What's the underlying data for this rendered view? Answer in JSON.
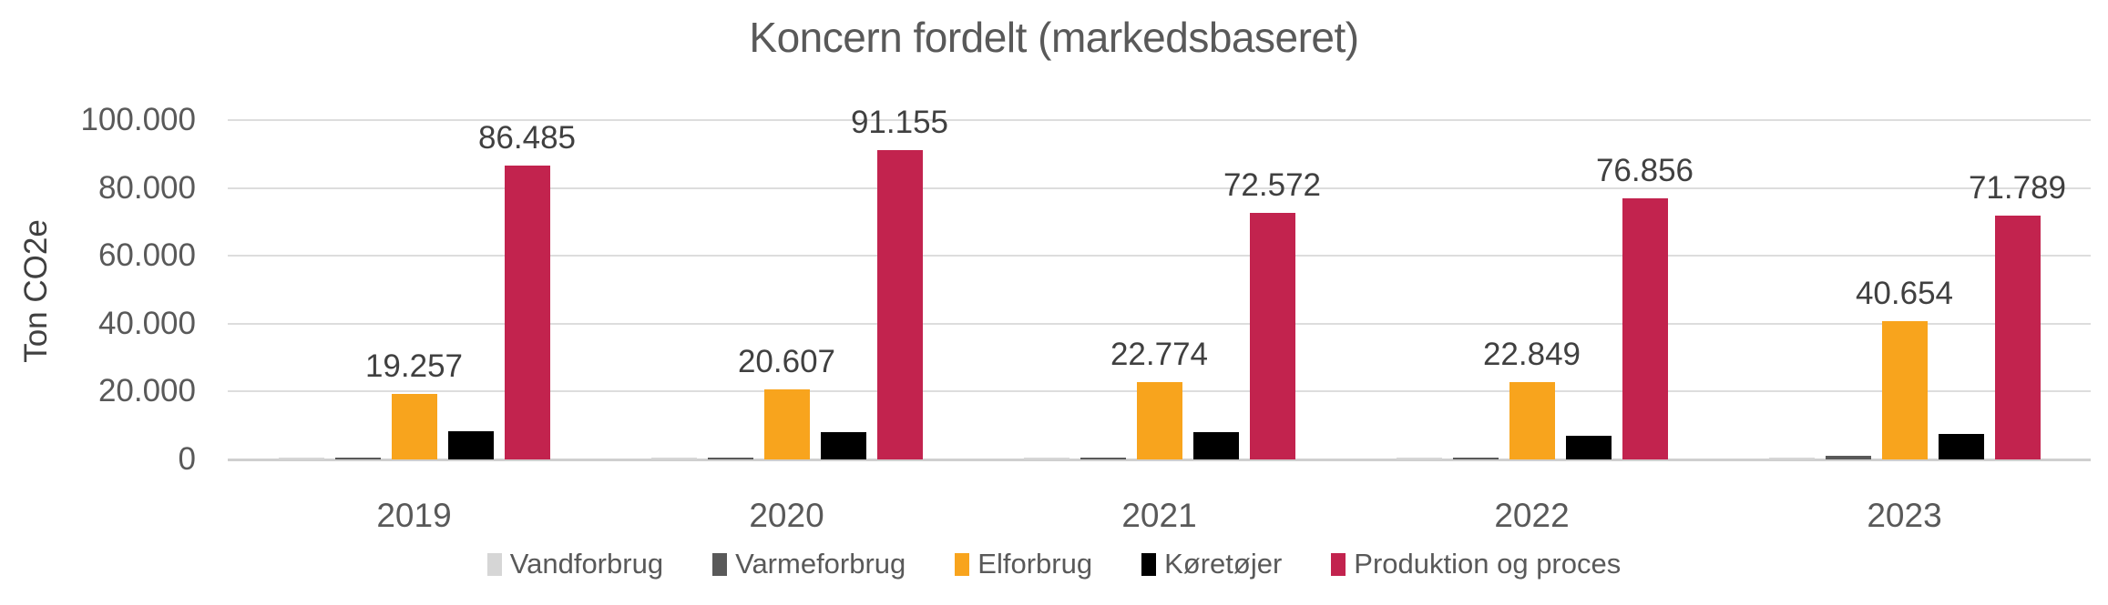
{
  "title": "Koncern fordelt (markedsbaseret)",
  "y_axis_title": "Ton CO2e",
  "colors": {
    "title_text": "#595959",
    "axis_text": "#595959",
    "data_label_text": "#404040",
    "gridline": "#DDDDDD",
    "baseline": "#CFCFCF",
    "series_vandforbrug": "#D6D6D6",
    "series_varmeforbrug": "#595959",
    "series_elforbrug": "#F8A41D",
    "series_koeretoejer": "#000000",
    "series_produktion_og_proces": "#C2234E"
  },
  "chart_data": {
    "type": "bar",
    "subtype": "grouped",
    "title": "Koncern fordelt (markedsbaseret)",
    "xlabel": "",
    "ylabel": "Ton CO2e",
    "ylim": [
      0,
      100000
    ],
    "gridline_step": 20000,
    "grid": true,
    "legend_position": "bottom",
    "y_ticks": [
      "0",
      "20.000",
      "40.000",
      "60.000",
      "80.000",
      "100.000"
    ],
    "categories": [
      "2019",
      "2020",
      "2021",
      "2022",
      "2023"
    ],
    "series": [
      {
        "name": "Vandforbrug",
        "color": "#D6D6D6",
        "values": [
          50,
          150,
          200,
          200,
          150
        ],
        "labels": null,
        "estimated": true
      },
      {
        "name": "Varmeforbrug",
        "color": "#595959",
        "values": [
          100,
          600,
          500,
          450,
          950
        ],
        "labels": null,
        "estimated": true
      },
      {
        "name": "Elforbrug",
        "color": "#F8A41D",
        "values": [
          19257,
          20607,
          22774,
          22849,
          40654
        ],
        "labels": [
          "19.257",
          "20.607",
          "22.774",
          "22.849",
          "40.654"
        ],
        "estimated": false
      },
      {
        "name": "Køretøjer",
        "color": "#000000",
        "values": [
          8200,
          8000,
          8000,
          6900,
          7400
        ],
        "labels": null,
        "estimated": true
      },
      {
        "name": "Produktion og proces",
        "color": "#C2234E",
        "values": [
          86485,
          91155,
          72572,
          76856,
          71789
        ],
        "labels": [
          "86.485",
          "91.155",
          "72.572",
          "76.856",
          "71.789"
        ],
        "estimated": false
      }
    ]
  }
}
